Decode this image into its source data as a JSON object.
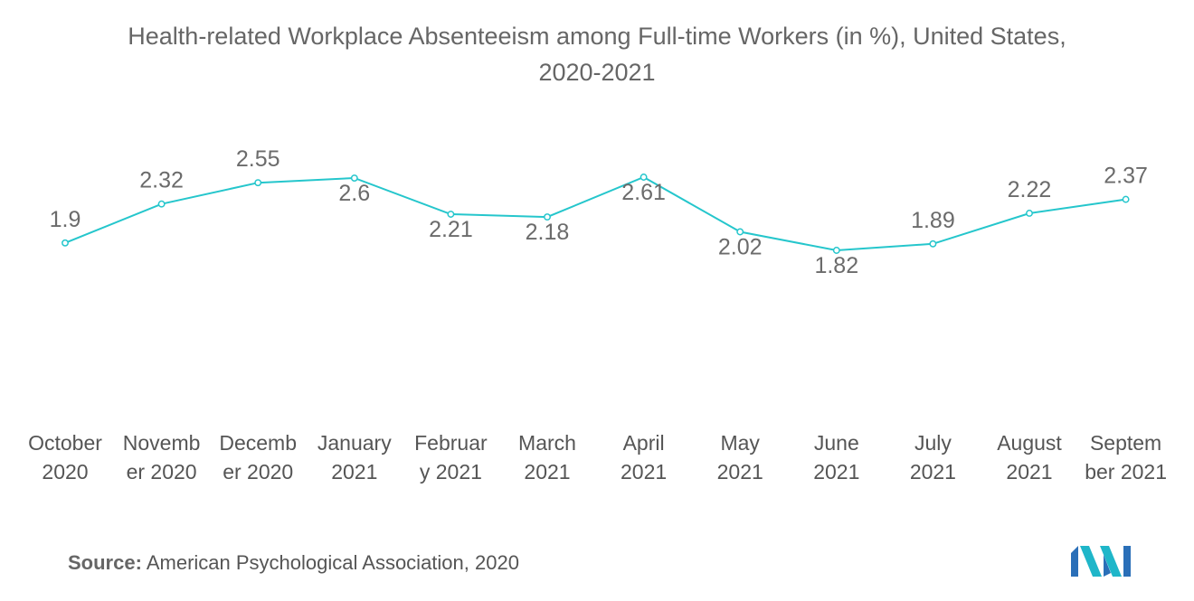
{
  "title_line1": "Health-related Workplace Absenteeism among Full-time Workers (in %), United States,",
  "title_line2": "2020-2021",
  "source_label": "Source:",
  "source_text": "American Psychological Association, 2020",
  "colors": {
    "line": "#25c6cc",
    "text": "#6b6b6b"
  },
  "chart_data": {
    "type": "line",
    "title": "Health-related Workplace Absenteeism among Full-time Workers (in %), United States, 2020-2021",
    "categories": [
      [
        "October",
        "2020"
      ],
      [
        "Novemb",
        "er 2020"
      ],
      [
        "Decemb",
        "er 2020"
      ],
      [
        "January",
        "2021"
      ],
      [
        "Februar",
        "y 2021"
      ],
      [
        "March",
        "2021"
      ],
      [
        "April",
        "2021"
      ],
      [
        "May",
        "2021"
      ],
      [
        "June",
        "2021"
      ],
      [
        "July",
        "2021"
      ],
      [
        "August",
        "2021"
      ],
      [
        "Septem",
        "ber 2021"
      ]
    ],
    "series": [
      {
        "values": [
          1.9,
          2.32,
          2.55,
          2.6,
          2.21,
          2.18,
          2.61,
          2.02,
          1.82,
          1.89,
          2.22,
          2.37
        ]
      }
    ],
    "label_position": [
      "above",
      "above",
      "above",
      "below",
      "below",
      "below",
      "below",
      "below",
      "below",
      "above",
      "above",
      "above"
    ],
    "grid": false,
    "legend": "none"
  }
}
